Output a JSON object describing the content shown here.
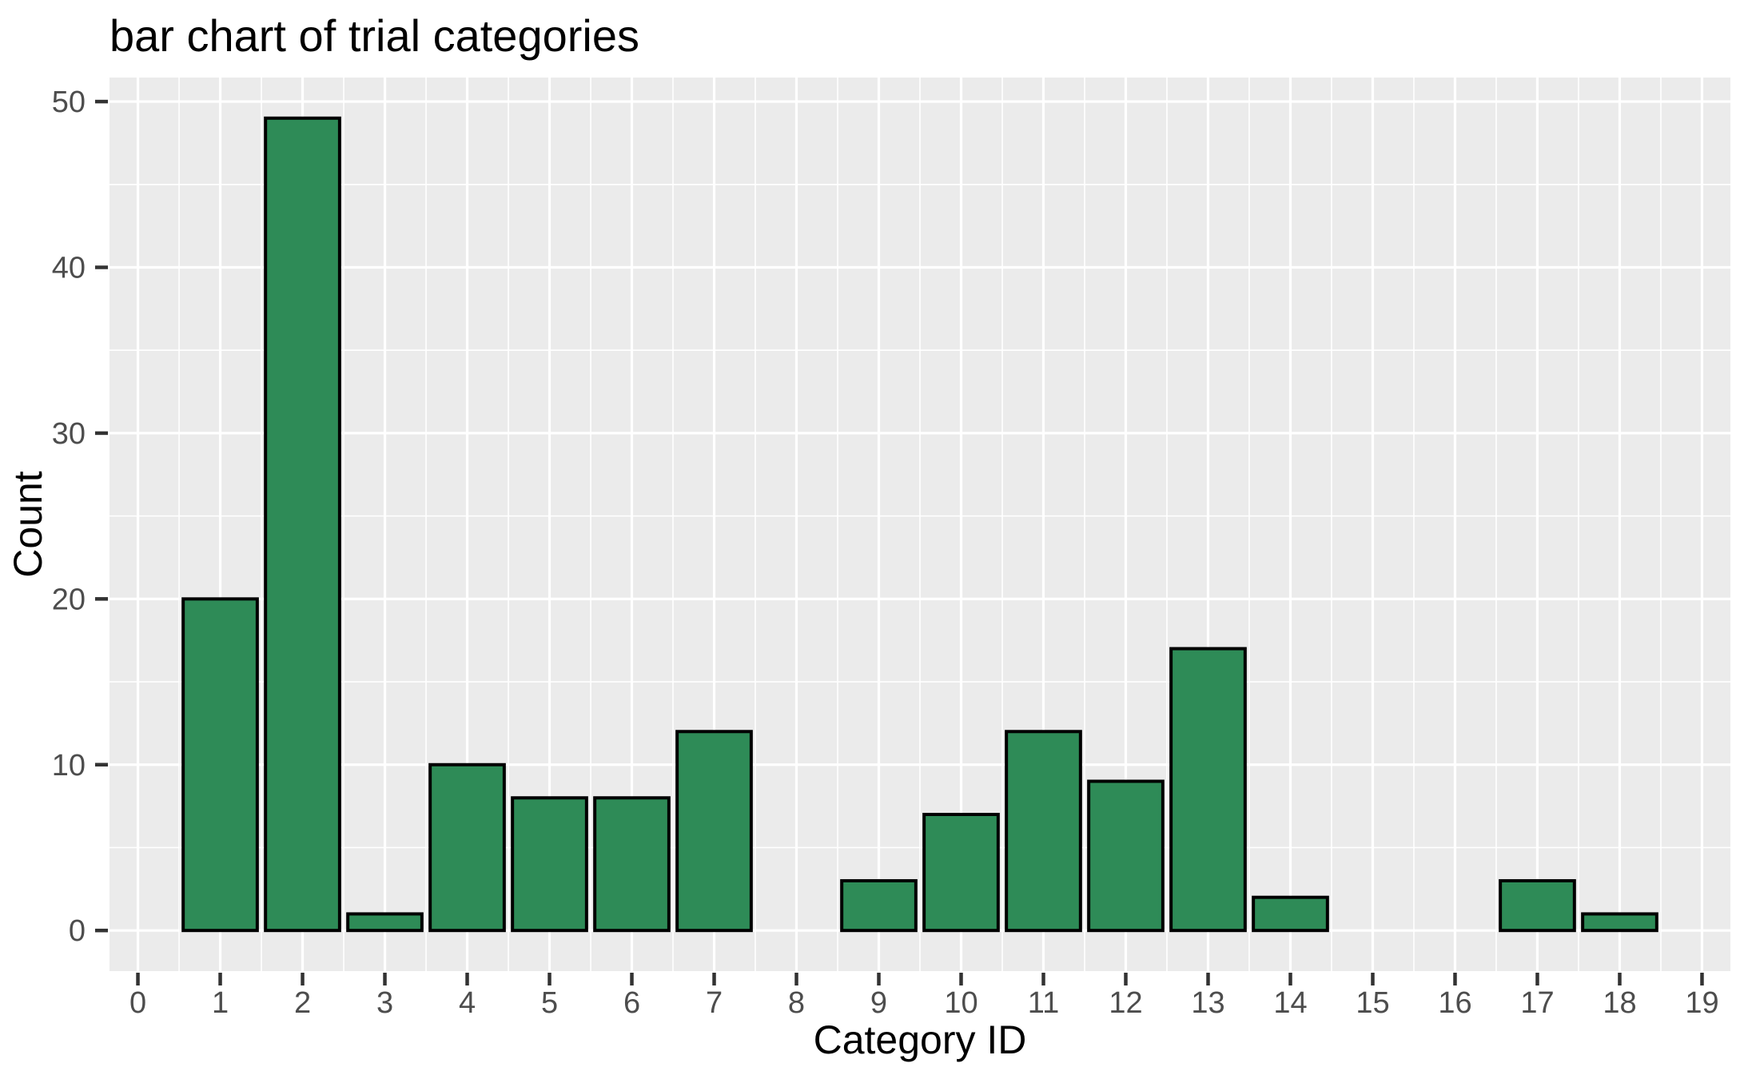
{
  "title": "bar chart of trial categories",
  "chart_data": {
    "type": "bar",
    "title": "bar chart of trial categories",
    "xlabel": "Category ID",
    "ylabel": "Count",
    "categories": [
      0,
      1,
      2,
      3,
      4,
      5,
      6,
      7,
      8,
      9,
      10,
      11,
      12,
      13,
      14,
      15,
      16,
      17,
      18,
      19
    ],
    "values": [
      0,
      20,
      49,
      1,
      10,
      8,
      8,
      12,
      0,
      3,
      7,
      12,
      9,
      17,
      2,
      0,
      0,
      3,
      1,
      0
    ],
    "x_tick_labels": [
      "0",
      "1",
      "2",
      "3",
      "4",
      "5",
      "6",
      "7",
      "8",
      "9",
      "10",
      "11",
      "12",
      "13",
      "14",
      "15",
      "16",
      "17",
      "18",
      "19"
    ],
    "y_tick_labels": [
      "0",
      "10",
      "20",
      "30",
      "40",
      "50"
    ],
    "y_ticks": [
      0,
      10,
      20,
      30,
      40,
      50
    ],
    "y_minor_ticks": [
      5,
      15,
      25,
      35,
      45
    ],
    "xlim": [
      -0.345,
      19.345
    ],
    "ylim": [
      -2.45,
      51.45
    ],
    "bar_width": 0.9,
    "grid": "on",
    "legend": "none",
    "colors": {
      "bar_fill": "#2E8B57",
      "bar_stroke": "#000000",
      "panel_background": "#EBEBEB",
      "gridline": "#FFFFFF",
      "tick_mark": "#333333",
      "tick_label": "#4D4D4D",
      "axis_title": "#000000",
      "title": "#000000",
      "figure_background": "#FFFFFF"
    }
  }
}
